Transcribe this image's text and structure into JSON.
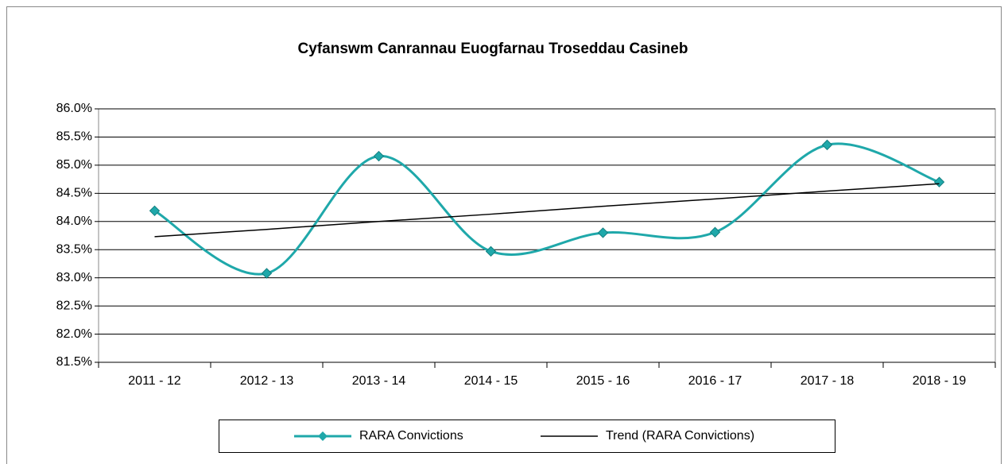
{
  "chart_data": {
    "type": "line",
    "title": "Cyfanswm Canrannau Euogfarnau Troseddau Casineb",
    "categories": [
      "2011 - 12",
      "2012 - 13",
      "2013 - 14",
      "2014 - 15",
      "2015 - 16",
      "2016 - 17",
      "2017 - 18",
      "2018 - 19"
    ],
    "series": [
      {
        "name": "RARA Convictions",
        "color": "#1fa8aa",
        "smooth": true,
        "marker": "diamond",
        "values": [
          84.19,
          83.08,
          85.16,
          83.47,
          83.8,
          83.81,
          85.36,
          84.7
        ]
      },
      {
        "name": "Trend (RARA Convictions)",
        "color": "#000000",
        "smooth": false,
        "values": [
          83.73,
          83.86,
          84.0,
          84.13,
          84.27,
          84.4,
          84.54,
          84.67
        ]
      }
    ],
    "ylim": [
      81.5,
      86.0
    ],
    "yticks": [
      {
        "value": 81.5,
        "label": "81.5%"
      },
      {
        "value": 82.0,
        "label": "82.0%"
      },
      {
        "value": 82.5,
        "label": "82.5%"
      },
      {
        "value": 83.0,
        "label": "83.0%"
      },
      {
        "value": 83.5,
        "label": "83.5%"
      },
      {
        "value": 84.0,
        "label": "84.0%"
      },
      {
        "value": 84.5,
        "label": "84.5%"
      },
      {
        "value": 85.0,
        "label": "85.0%"
      },
      {
        "value": 85.5,
        "label": "85.5%"
      },
      {
        "value": 86.0,
        "label": "86.0%"
      }
    ],
    "grid": true,
    "legend": "bottom"
  }
}
